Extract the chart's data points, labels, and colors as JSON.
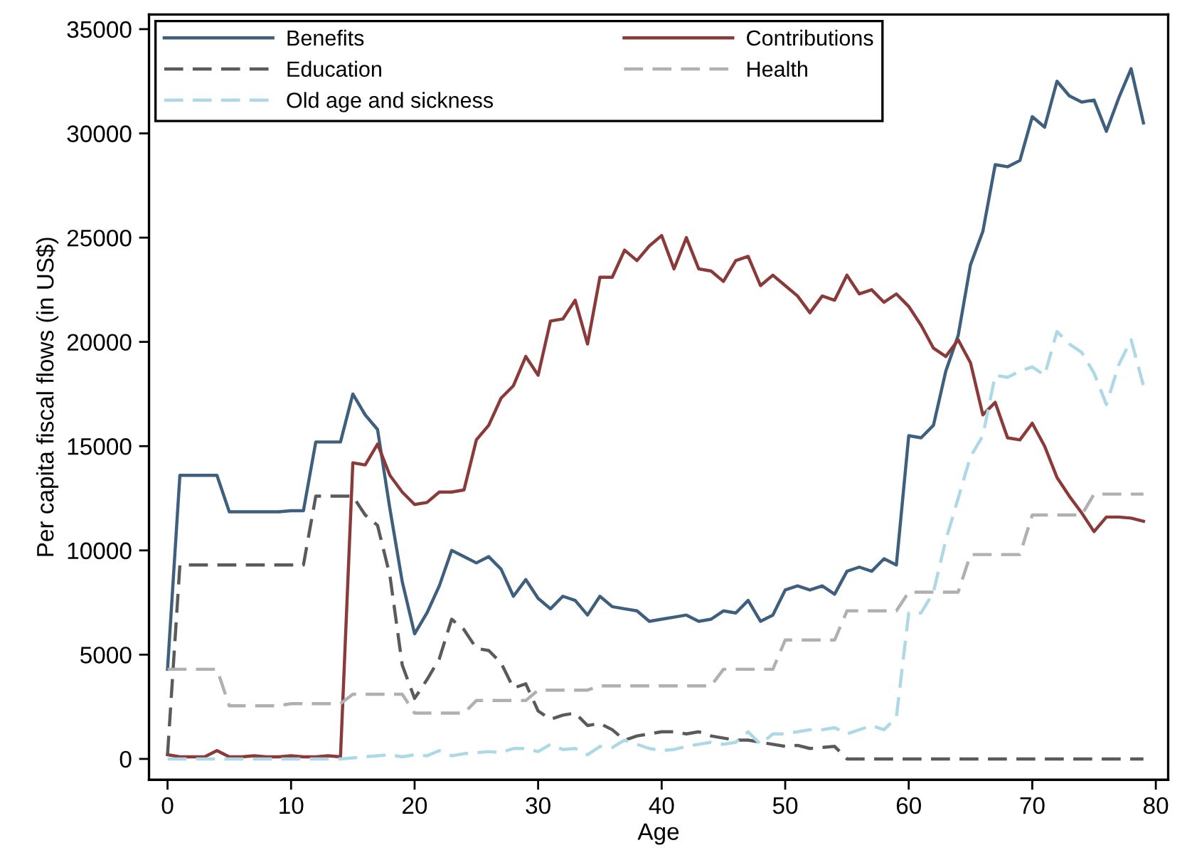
{
  "chart_data": {
    "type": "line",
    "xlabel": "Age",
    "ylabel": "Per capita fiscal flows (in US$)",
    "x": [
      0,
      1,
      2,
      3,
      4,
      5,
      6,
      7,
      8,
      9,
      10,
      11,
      12,
      13,
      14,
      15,
      16,
      17,
      18,
      19,
      20,
      21,
      22,
      23,
      24,
      25,
      26,
      27,
      28,
      29,
      30,
      31,
      32,
      33,
      34,
      35,
      36,
      37,
      38,
      39,
      40,
      41,
      42,
      43,
      44,
      45,
      46,
      47,
      48,
      49,
      50,
      51,
      52,
      53,
      54,
      55,
      56,
      57,
      58,
      59,
      60,
      61,
      62,
      63,
      64,
      65,
      66,
      67,
      68,
      69,
      70,
      71,
      72,
      73,
      74,
      75,
      76,
      77,
      78,
      79
    ],
    "xlim": [
      -1.5,
      81
    ],
    "xticks": [
      0,
      10,
      20,
      30,
      40,
      50,
      60,
      70,
      80
    ],
    "ylim": [
      -1000,
      35700
    ],
    "yticks": [
      0,
      5000,
      10000,
      15000,
      20000,
      25000,
      30000,
      35000
    ],
    "grid": false,
    "legend": "top left",
    "marker": "none",
    "series": [
      {
        "name": "Benefits",
        "color": "#3e5f7e",
        "line_style": "solid",
        "values": [
          4300,
          13600,
          13600,
          13600,
          13600,
          11850,
          11850,
          11850,
          11850,
          11850,
          11900,
          11900,
          15200,
          15200,
          15200,
          17500,
          16500,
          15800,
          12000,
          8500,
          6000,
          7000,
          8300,
          10000,
          9700,
          9400,
          9700,
          9100,
          7800,
          8600,
          7700,
          7200,
          7800,
          7600,
          6900,
          7800,
          7300,
          7200,
          7100,
          6600,
          6700,
          6800,
          6900,
          6600,
          6700,
          7100,
          7000,
          7600,
          6600,
          6900,
          8100,
          8300,
          8100,
          8300,
          7900,
          9000,
          9200,
          9000,
          9600,
          9300,
          15500,
          15400,
          16000,
          18600,
          20300,
          23700,
          25300,
          28500,
          28400,
          28700,
          30800,
          30300,
          32500,
          31800,
          31500,
          31600,
          30100,
          31700,
          33100,
          30500
        ]
      },
      {
        "name": "Contributions",
        "color": "#8b3a3a",
        "line_style": "solid",
        "values": [
          200,
          100,
          100,
          100,
          400,
          100,
          100,
          150,
          100,
          100,
          150,
          100,
          100,
          150,
          100,
          14200,
          14100,
          15100,
          13600,
          12800,
          12200,
          12300,
          12800,
          12800,
          12900,
          15300,
          16000,
          17300,
          17900,
          19300,
          18400,
          21000,
          21100,
          22000,
          19900,
          23100,
          23100,
          24400,
          23900,
          24600,
          25100,
          23500,
          25000,
          23500,
          23400,
          22900,
          23900,
          24100,
          22700,
          23200,
          22700,
          22200,
          21400,
          22200,
          22000,
          23200,
          22300,
          22500,
          21900,
          22300,
          21700,
          20800,
          19700,
          19300,
          20100,
          19000,
          16500,
          17100,
          15400,
          15300,
          16100,
          15000,
          13500,
          12600,
          11800,
          10900,
          11600,
          11600,
          11550,
          11400
        ]
      },
      {
        "name": "Education",
        "color": "#5a5a5a",
        "line_style": "dashed",
        "values": [
          200,
          9300,
          9300,
          9300,
          9300,
          9300,
          9300,
          9300,
          9300,
          9300,
          9300,
          9300,
          12600,
          12600,
          12600,
          12600,
          11700,
          11200,
          8800,
          4500,
          2900,
          3800,
          4800,
          6700,
          6200,
          5300,
          5200,
          4600,
          3400,
          3600,
          2300,
          1900,
          2100,
          2200,
          1600,
          1700,
          1400,
          900,
          1100,
          1200,
          1300,
          1300,
          1200,
          1300,
          1100,
          1000,
          900,
          900,
          800,
          700,
          600,
          650,
          500,
          550,
          600,
          0,
          0,
          0,
          0,
          0,
          0,
          0,
          0,
          0,
          0,
          0,
          0,
          0,
          0,
          0,
          0,
          0,
          0,
          0,
          0,
          0,
          0,
          0,
          0,
          0
        ]
      },
      {
        "name": "Health",
        "color": "#b0b0b0",
        "line_style": "dashed",
        "values": [
          4300,
          4300,
          4300,
          4300,
          4300,
          2550,
          2550,
          2550,
          2550,
          2550,
          2650,
          2650,
          2650,
          2650,
          2650,
          3100,
          3100,
          3100,
          3100,
          3100,
          2200,
          2200,
          2200,
          2200,
          2200,
          2800,
          2800,
          2800,
          2800,
          2800,
          3300,
          3300,
          3300,
          3300,
          3300,
          3500,
          3500,
          3500,
          3500,
          3500,
          3500,
          3500,
          3500,
          3500,
          3500,
          4300,
          4300,
          4300,
          4300,
          4300,
          5700,
          5700,
          5700,
          5700,
          5700,
          7100,
          7100,
          7100,
          7100,
          7100,
          8000,
          8000,
          8000,
          8000,
          8000,
          9800,
          9800,
          9800,
          9800,
          9800,
          11700,
          11700,
          11700,
          11700,
          11700,
          12700,
          12700,
          12700,
          12700,
          12700
        ]
      },
      {
        "name": "Old age and sickness",
        "color": "#add8e6",
        "line_style": "dashed",
        "values": [
          0,
          0,
          0,
          0,
          0,
          0,
          0,
          0,
          0,
          0,
          0,
          0,
          0,
          0,
          0,
          50,
          100,
          150,
          200,
          100,
          200,
          150,
          400,
          150,
          250,
          300,
          350,
          300,
          500,
          500,
          350,
          700,
          450,
          500,
          200,
          600,
          550,
          900,
          700,
          500,
          400,
          450,
          600,
          700,
          800,
          700,
          800,
          1300,
          700,
          1200,
          1200,
          1300,
          1400,
          1400,
          1500,
          1200,
          1400,
          1600,
          1400,
          2000,
          7000,
          7000,
          8000,
          10500,
          12500,
          14500,
          15500,
          18400,
          18300,
          18600,
          18800,
          18400,
          20500,
          19900,
          19500,
          18500,
          17000,
          18900,
          20100,
          17900
        ]
      }
    ]
  }
}
